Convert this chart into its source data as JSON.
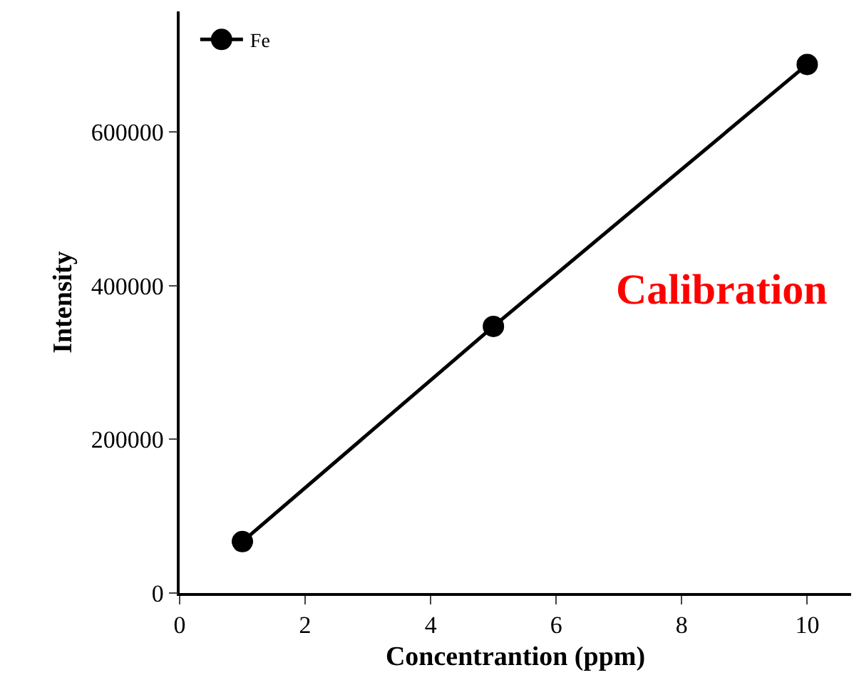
{
  "chart_data": {
    "type": "line",
    "xlabel": "Concentrantion (ppm)",
    "ylabel": "Intensity",
    "x": [
      1,
      5,
      10
    ],
    "series": [
      {
        "name": "Fe",
        "color": "#000000",
        "values": [
          67000,
          347000,
          688000
        ]
      }
    ],
    "xlim": [
      0,
      10.7
    ],
    "xticks": [
      0,
      2,
      4,
      6,
      8,
      10
    ],
    "ylim": [
      0,
      757000
    ],
    "yticks": [
      0,
      200000,
      400000,
      600000
    ],
    "annotations": [
      "Calibration"
    ],
    "marker": "circle",
    "line_style": "solid",
    "legend": "top left",
    "grid": false
  }
}
